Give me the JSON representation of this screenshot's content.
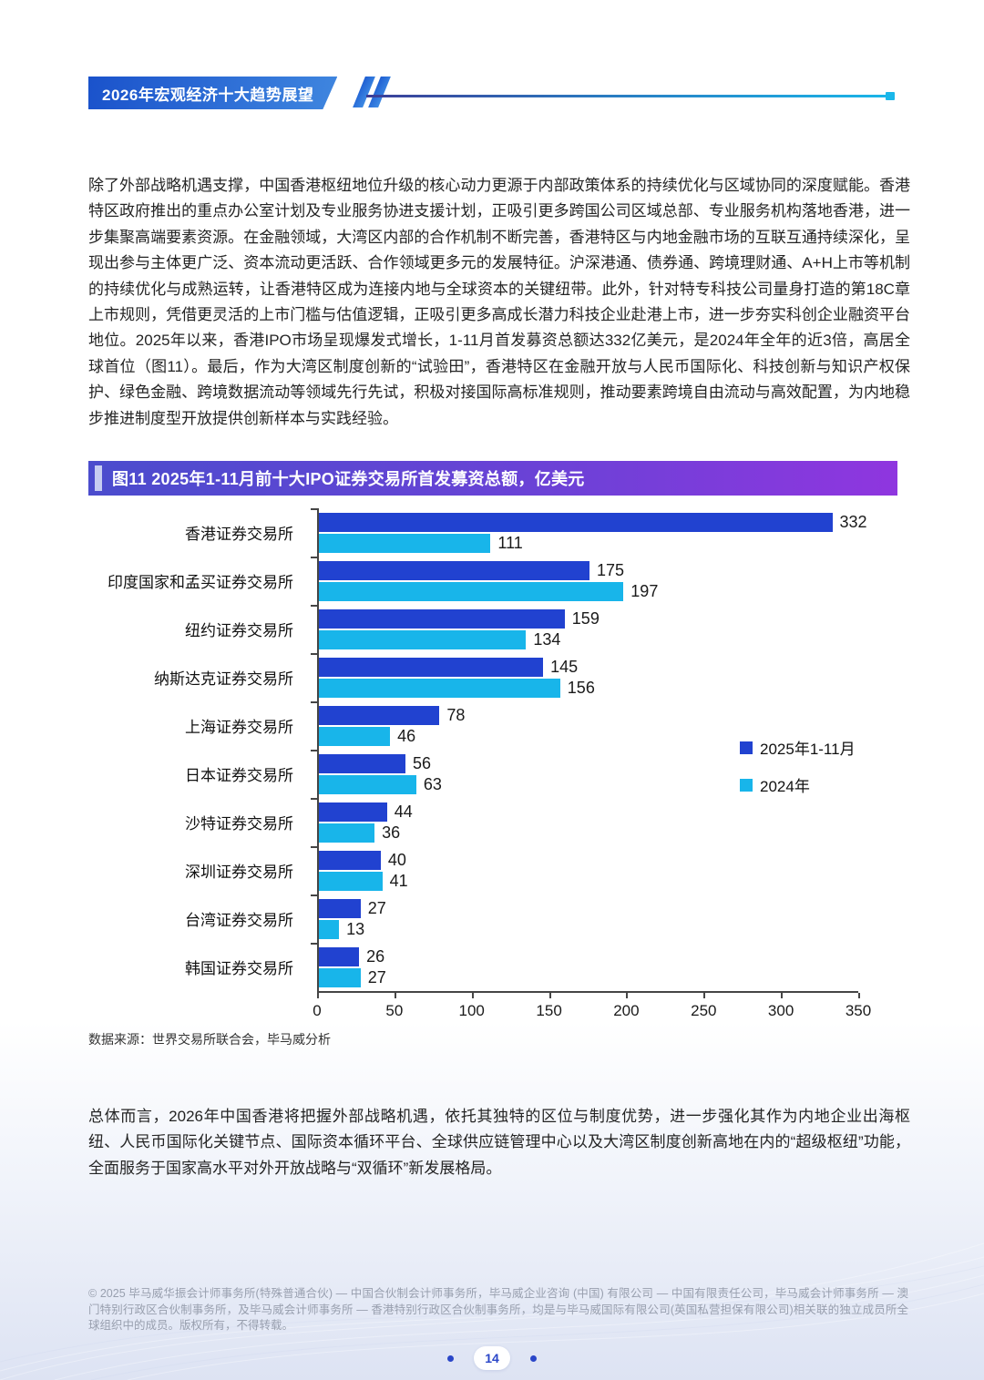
{
  "page": {
    "header_title": "2026年宏观经济十大趋势展望",
    "page_number": "14"
  },
  "paragraphs": {
    "p1": "除了外部战略机遇支撑，中国香港枢纽地位升级的核心动力更源于内部政策体系的持续优化与区域协同的深度赋能。香港特区政府推出的重点办公室计划及专业服务协进支援计划，正吸引更多跨国公司区域总部、专业服务机构落地香港，进一步集聚高端要素资源。在金融领域，大湾区内部的合作机制不断完善，香港特区与内地金融市场的互联互通持续深化，呈现出参与主体更广泛、资本流动更活跃、合作领域更多元的发展特征。沪深港通、债券通、跨境理财通、A+H上市等机制的持续优化与成熟运转，让香港特区成为连接内地与全球资本的关键纽带。此外，针对特专科技公司量身打造的第18C章上市规则，凭借更灵活的上市门槛与估值逻辑，正吸引更多高成长潜力科技企业赴港上市，进一步夯实科创企业融资平台地位。2025年以来，香港IPO市场呈现爆发式增长，1-11月首发募资总额达332亿美元，是2024年全年的近3倍，高居全球首位（图11）。最后，作为大湾区制度创新的“试验田”，香港特区在金融开放与人民币国际化、科技创新与知识产权保护、绿色金融、跨境数据流动等领域先行先试，积极对接国际高标准规则，推动要素跨境自由流动与高效配置，为内地稳步推进制度型开放提供创新样本与实践经验。",
    "p2": "总体而言，2026年中国香港将把握外部战略机遇，依托其独特的区位与制度优势，进一步强化其作为内地企业出海枢纽、人民币国际化关键节点、国际资本循环平台、全球供应链管理中心以及大湾区制度创新高地在内的“超级枢纽”功能，全面服务于国家高水平对外开放战略与“双循环”新发展格局。"
  },
  "chart": {
    "title": "图11 2025年1-11月前十大IPO证券交易所首发募资总额，亿美元",
    "source": "数据来源：世界交易所联合会，毕马威分析"
  },
  "chart_data": {
    "type": "bar",
    "orientation": "horizontal",
    "title": "图11 2025年1-11月前十大IPO证券交易所首发募资总额，亿美元",
    "categories": [
      "香港证券交易所",
      "印度国家和孟买证券交易所",
      "纽约证券交易所",
      "纳斯达克证券交易所",
      "上海证券交易所",
      "日本证券交易所",
      "沙特证券交易所",
      "深圳证券交易所",
      "台湾证券交易所",
      "韩国证券交易所"
    ],
    "series": [
      {
        "name": "2025年1-11月",
        "color": "#2142d0",
        "values": [
          332,
          175,
          159,
          145,
          78,
          56,
          44,
          40,
          27,
          26
        ]
      },
      {
        "name": "2024年",
        "color": "#18b5ea",
        "values": [
          111,
          197,
          134,
          156,
          46,
          63,
          36,
          41,
          13,
          27
        ]
      }
    ],
    "xlim": [
      0,
      350
    ],
    "xticks": [
      0,
      50,
      100,
      150,
      200,
      250,
      300,
      350
    ],
    "legend_position": "right-middle",
    "grid": false
  },
  "footer": {
    "copyright": "© 2025 毕马威华振会计师事务所(特殊普通合伙) — 中国合伙制会计师事务所，毕马威企业咨询 (中国) 有限公司 — 中国有限责任公司，毕马威会计师事务所 — 澳门特别行政区合伙制事务所，及毕马威会计师事务所 — 香港特别行政区合伙制事务所，均是与毕马威国际有限公司(英国私营担保有限公司)相关联的独立成员所全球组织中的成员。版权所有，不得转载。"
  },
  "colors": {
    "series_2025": "#2142d0",
    "series_2024": "#18b5ea",
    "title_bar_gradient_start": "#4b4ccd",
    "title_bar_gradient_end": "#8f36df",
    "header_banner_blue": "#1a52cb",
    "header_line_cyan": "#1ab5e8",
    "page_number_blue": "#2a46c8"
  }
}
